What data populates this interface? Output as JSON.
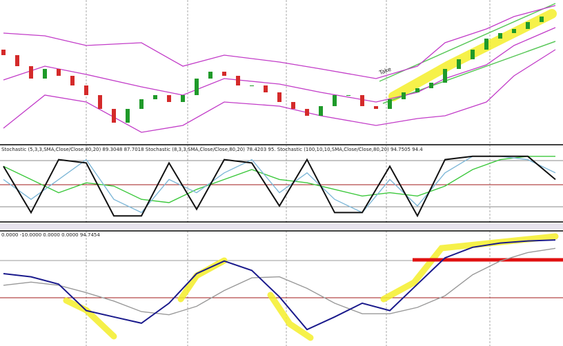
{
  "chart_data": [
    {
      "type": "candlestick",
      "annotations": [
        "Take"
      ],
      "x": [
        0,
        1,
        2,
        3,
        4,
        5,
        6,
        7,
        8,
        9,
        10,
        11,
        12,
        13,
        14,
        15,
        16,
        17,
        18,
        19,
        20,
        21,
        22,
        23,
        24,
        25,
        26,
        27,
        28,
        29,
        30,
        31,
        32,
        33,
        34,
        35,
        36,
        37,
        38,
        39
      ],
      "open": [
        66,
        62,
        54,
        45,
        52,
        47,
        40,
        33,
        23,
        13,
        23,
        30,
        33,
        28,
        33,
        45,
        50,
        47,
        40,
        40,
        35,
        28,
        23,
        18,
        25,
        33,
        33,
        25,
        23,
        30,
        35,
        38,
        42,
        52,
        59,
        66,
        74,
        78,
        81,
        86
      ],
      "close": [
        62,
        54,
        45,
        52,
        47,
        40,
        33,
        23,
        13,
        23,
        30,
        33,
        28,
        33,
        45,
        50,
        47,
        40,
        40,
        35,
        28,
        23,
        18,
        25,
        33,
        33,
        25,
        23,
        30,
        35,
        38,
        42,
        52,
        59,
        66,
        74,
        78,
        81,
        86,
        90
      ],
      "up_color": "#1f9a2a",
      "down_color": "#d42a2a",
      "overlays": [
        {
          "color": "#c23cc8",
          "x": [
            0,
            3,
            6,
            10,
            13,
            16,
            20,
            23,
            27,
            30,
            32,
            35,
            37,
            40
          ],
          "values": [
            78,
            76,
            69,
            71,
            54,
            62,
            57,
            52,
            45,
            54,
            71,
            81,
            90,
            98
          ]
        },
        {
          "color": "#c23cc8",
          "x": [
            0,
            3,
            6,
            10,
            13,
            16,
            20,
            23,
            27,
            30,
            32,
            35,
            37,
            40
          ],
          "values": [
            44,
            54,
            48,
            39,
            33,
            45,
            41,
            35,
            28,
            35,
            45,
            55,
            69,
            82
          ]
        },
        {
          "color": "#c23cc8",
          "x": [
            0,
            3,
            6,
            10,
            13,
            16,
            20,
            23,
            27,
            30,
            32,
            35,
            37,
            40
          ],
          "values": [
            9,
            33,
            28,
            6,
            11,
            28,
            25,
            18,
            11,
            16,
            18,
            28,
            47,
            66
          ]
        }
      ],
      "xlim": [
        0,
        40
      ],
      "ylim": [
        0,
        100
      ]
    },
    {
      "type": "line",
      "title": "Stochastic (5,3,3,SMA,Close/Close,80,20) 89.3048 87.7018  Stochastic (8,3,3,SMA,Close/Close,80,20) 78.4203 95.  Stochastic (100,10,10,SMA,Close/Close,80,20) 94.7505 94.4",
      "series": [
        {
          "color": "#3cc83c",
          "x": [
            0,
            2,
            4,
            6,
            8,
            10,
            12,
            14,
            16,
            18,
            20,
            22,
            24,
            26,
            28,
            30,
            32,
            34,
            36,
            38,
            40
          ],
          "values": [
            80,
            60,
            40,
            55,
            50,
            30,
            25,
            45,
            60,
            75,
            60,
            55,
            45,
            35,
            40,
            35,
            50,
            75,
            90,
            95,
            95
          ]
        },
        {
          "color": "#7fb8d8",
          "x": [
            0,
            2,
            4,
            6,
            8,
            10,
            12,
            14,
            16,
            18,
            20,
            22,
            24,
            26,
            28,
            30,
            32,
            34,
            36,
            38,
            40
          ],
          "values": [
            60,
            30,
            60,
            90,
            30,
            10,
            60,
            40,
            70,
            90,
            40,
            70,
            30,
            10,
            60,
            20,
            70,
            95,
            95,
            90,
            70
          ]
        },
        {
          "color": "#111111",
          "x": [
            0,
            2,
            4,
            6,
            8,
            10,
            12,
            14,
            16,
            18,
            20,
            22,
            24,
            26,
            28,
            30,
            32,
            34,
            36,
            38,
            40
          ],
          "values": [
            80,
            10,
            90,
            85,
            5,
            5,
            85,
            15,
            90,
            85,
            20,
            90,
            10,
            10,
            80,
            5,
            90,
            95,
            95,
            95,
            60
          ]
        }
      ],
      "xlim": [
        0,
        40
      ],
      "ylim": [
        0,
        100
      ]
    },
    {
      "type": "line",
      "title": "0.0000 -10.0000 0.0000 0.0000 94.7454",
      "series": [
        {
          "color": "#999999",
          "x": [
            0,
            2,
            4,
            6,
            8,
            10,
            12,
            14,
            16,
            18,
            20,
            22,
            24,
            26,
            28,
            30,
            32,
            34,
            36,
            38,
            40
          ],
          "values": [
            55,
            58,
            55,
            48,
            40,
            30,
            27,
            35,
            50,
            62,
            63,
            52,
            38,
            28,
            28,
            34,
            45,
            65,
            78,
            86,
            90
          ]
        },
        {
          "color": "#1a1a8c",
          "x": [
            0,
            2,
            4,
            6,
            8,
            10,
            12,
            14,
            16,
            18,
            20,
            22,
            24,
            26,
            28,
            30,
            32,
            34,
            36,
            38,
            40
          ],
          "values": [
            66,
            63,
            56,
            31,
            25,
            19,
            38,
            66,
            78,
            69,
            44,
            13,
            25,
            38,
            31,
            56,
            81,
            91,
            95,
            97,
            98
          ]
        }
      ],
      "xlim": [
        0,
        40
      ],
      "ylim": [
        0,
        100
      ]
    }
  ]
}
